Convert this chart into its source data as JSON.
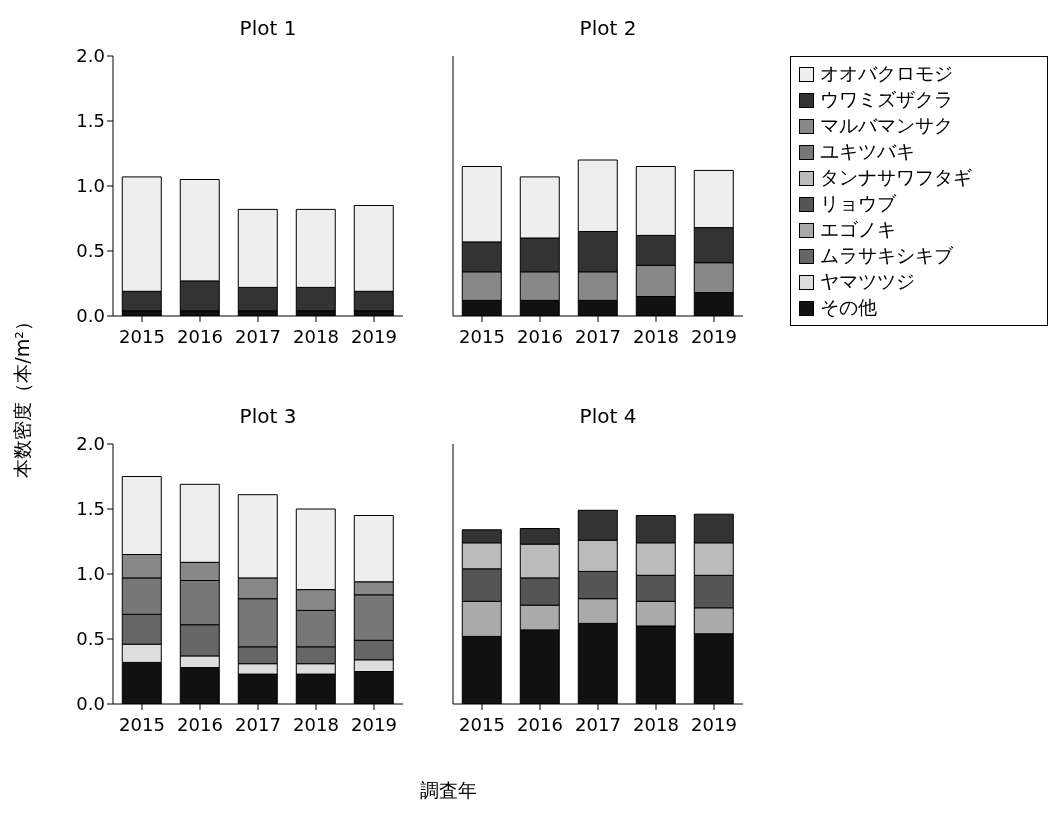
{
  "chart_data": [
    {
      "type": "bar",
      "title": "Plot 1",
      "ylabel": "本数密度（本/m²）",
      "xlabel": "調査年",
      "stacked": true,
      "tick_labels": "xy",
      "categories": [
        "2015",
        "2016",
        "2017",
        "2018",
        "2019"
      ],
      "ylim": [
        0,
        2
      ],
      "yticks": [
        {
          "value": 0,
          "label": "0.0"
        },
        {
          "value": 0.5,
          "label": "0.5"
        },
        {
          "value": 1,
          "label": "1.0"
        },
        {
          "value": 1.5,
          "label": "1.5"
        },
        {
          "value": 2,
          "label": "2.0"
        }
      ],
      "series": [
        {
          "color": "#111111",
          "values": [
            0.04,
            0.04,
            0.04,
            0.04,
            0.04
          ]
        },
        {
          "color": "#dddddd",
          "values": [
            0,
            0,
            0,
            0,
            0
          ]
        },
        {
          "color": "#666666",
          "values": [
            0,
            0,
            0,
            0,
            0
          ]
        },
        {
          "color": "#aaaaaa",
          "values": [
            0,
            0,
            0,
            0,
            0
          ]
        },
        {
          "color": "#555555",
          "values": [
            0,
            0,
            0,
            0,
            0
          ]
        },
        {
          "color": "#bbbbbb",
          "values": [
            0,
            0,
            0,
            0,
            0
          ]
        },
        {
          "color": "#777777",
          "values": [
            0,
            0,
            0,
            0,
            0
          ]
        },
        {
          "color": "#888888",
          "values": [
            0,
            0,
            0,
            0,
            0
          ]
        },
        {
          "color": "#333333",
          "values": [
            0.15,
            0.23,
            0.18,
            0.18,
            0.15
          ]
        },
        {
          "color": "#eeeeee",
          "values": [
            0.88,
            0.78,
            0.6,
            0.6,
            0.66
          ]
        }
      ]
    },
    {
      "type": "bar",
      "title": "Plot 2",
      "stacked": true,
      "legend": "right",
      "tick_labels": "x",
      "categories": [
        "2015",
        "2016",
        "2017",
        "2018",
        "2019"
      ],
      "ylim": [
        0,
        2
      ],
      "yticks": [
        {
          "value": 0,
          "label": null
        },
        {
          "value": 0.5,
          "label": null
        },
        {
          "value": 1,
          "label": null
        },
        {
          "value": 1.5,
          "label": null
        },
        {
          "value": 2,
          "label": null
        }
      ],
      "series": [
        {
          "name": "その他",
          "color": "#111111",
          "values": [
            0.12,
            0.12,
            0.12,
            0.15,
            0.18
          ]
        },
        {
          "name": "ヤマツツジ",
          "color": "#dddddd",
          "values": [
            0,
            0,
            0,
            0,
            0
          ]
        },
        {
          "name": "ムラサキシキブ",
          "color": "#666666",
          "values": [
            0,
            0,
            0,
            0,
            0
          ]
        },
        {
          "name": "エゴノキ",
          "color": "#aaaaaa",
          "values": [
            0,
            0,
            0,
            0,
            0
          ]
        },
        {
          "name": "リョウブ",
          "color": "#555555",
          "values": [
            0,
            0,
            0,
            0,
            0
          ]
        },
        {
          "name": "タンナサワフタギ",
          "color": "#bbbbbb",
          "values": [
            0,
            0,
            0,
            0,
            0
          ]
        },
        {
          "name": "ユキツバキ",
          "color": "#777777",
          "values": [
            0,
            0,
            0,
            0,
            0
          ]
        },
        {
          "name": "マルバマンサク",
          "color": "#888888",
          "values": [
            0.22,
            0.22,
            0.22,
            0.24,
            0.23
          ]
        },
        {
          "name": "ウワミズザクラ",
          "color": "#333333",
          "values": [
            0.23,
            0.26,
            0.31,
            0.23,
            0.27
          ]
        },
        {
          "name": "オオバクロモジ",
          "color": "#eeeeee",
          "values": [
            0.58,
            0.47,
            0.55,
            0.53,
            0.44
          ]
        }
      ]
    },
    {
      "type": "bar",
      "title": "Plot 3",
      "stacked": true,
      "tick_labels": "xy",
      "categories": [
        "2015",
        "2016",
        "2017",
        "2018",
        "2019"
      ],
      "ylim": [
        0,
        2
      ],
      "yticks": [
        {
          "value": 0,
          "label": "0.0"
        },
        {
          "value": 0.5,
          "label": "0.5"
        },
        {
          "value": 1,
          "label": "1.0"
        },
        {
          "value": 1.5,
          "label": "1.5"
        },
        {
          "value": 2,
          "label": "2.0"
        }
      ],
      "series": [
        {
          "color": "#111111",
          "values": [
            0.32,
            0.28,
            0.23,
            0.23,
            0.25
          ]
        },
        {
          "color": "#dddddd",
          "values": [
            0.14,
            0.09,
            0.08,
            0.08,
            0.09
          ]
        },
        {
          "color": "#666666",
          "values": [
            0.23,
            0.24,
            0.13,
            0.13,
            0.15
          ]
        },
        {
          "color": "#aaaaaa",
          "values": [
            0,
            0,
            0,
            0,
            0
          ]
        },
        {
          "color": "#555555",
          "values": [
            0,
            0,
            0,
            0,
            0
          ]
        },
        {
          "color": "#bbbbbb",
          "values": [
            0,
            0,
            0,
            0,
            0
          ]
        },
        {
          "color": "#777777",
          "values": [
            0.28,
            0.34,
            0.37,
            0.28,
            0.35
          ]
        },
        {
          "color": "#888888",
          "values": [
            0.18,
            0.14,
            0.16,
            0.16,
            0.1
          ]
        },
        {
          "color": "#333333",
          "values": [
            0,
            0,
            0,
            0,
            0
          ]
        },
        {
          "color": "#eeeeee",
          "values": [
            0.6,
            0.6,
            0.64,
            0.62,
            0.51
          ]
        }
      ]
    },
    {
      "type": "bar",
      "title": "Plot 4",
      "stacked": true,
      "tick_labels": "x",
      "categories": [
        "2015",
        "2016",
        "2017",
        "2018",
        "2019"
      ],
      "ylim": [
        0,
        2
      ],
      "yticks": [
        {
          "value": 0,
          "label": null
        },
        {
          "value": 0.5,
          "label": null
        },
        {
          "value": 1,
          "label": null
        },
        {
          "value": 1.5,
          "label": null
        },
        {
          "value": 2,
          "label": null
        }
      ],
      "series": [
        {
          "color": "#111111",
          "values": [
            0.52,
            0.57,
            0.62,
            0.6,
            0.54
          ]
        },
        {
          "color": "#dddddd",
          "values": [
            0,
            0,
            0,
            0,
            0
          ]
        },
        {
          "color": "#666666",
          "values": [
            0,
            0,
            0,
            0,
            0
          ]
        },
        {
          "color": "#aaaaaa",
          "values": [
            0.27,
            0.19,
            0.19,
            0.19,
            0.2
          ]
        },
        {
          "color": "#555555",
          "values": [
            0.25,
            0.21,
            0.21,
            0.2,
            0.25
          ]
        },
        {
          "color": "#bbbbbb",
          "values": [
            0.2,
            0.26,
            0.24,
            0.25,
            0.25
          ]
        },
        {
          "color": "#777777",
          "values": [
            0,
            0,
            0,
            0,
            0
          ]
        },
        {
          "color": "#888888",
          "values": [
            0,
            0,
            0,
            0,
            0
          ]
        },
        {
          "color": "#333333",
          "values": [
            0.1,
            0.12,
            0.23,
            0.21,
            0.22
          ]
        },
        {
          "color": "#eeeeee",
          "values": [
            0,
            0,
            0,
            0,
            0
          ]
        }
      ]
    }
  ]
}
